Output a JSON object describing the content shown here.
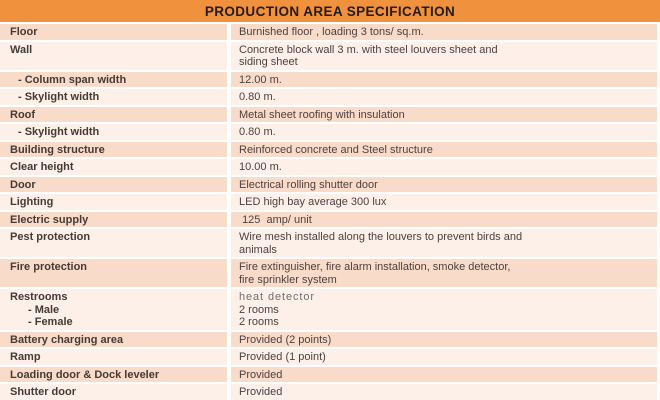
{
  "title": "PRODUCTION AREA SPECIFICATION",
  "colors": {
    "header_bg": "#F0913E",
    "header_text": "#241B14",
    "row_dark": "#F9DBC9",
    "row_light": "#FCF0E9",
    "text": "#4C4141",
    "muted_text": "#6F6F6F"
  },
  "table": {
    "rows": [
      {
        "label": "Floor",
        "value": "Burnished floor , loading 3 tons/ sq.m."
      },
      {
        "label": "Wall",
        "value_lines": [
          {
            "text": "Concrete block wall 3 m. with steel louvers sheet and"
          },
          {
            "text": "siding sheet"
          }
        ]
      },
      {
        "label": "- Column span width",
        "indent": true,
        "value": "12.00 m."
      },
      {
        "label": "- Skylight width",
        "indent": true,
        "value": "0.80 m."
      },
      {
        "label": "Roof",
        "value": "Metal sheet roofing with insulation"
      },
      {
        "label": "- Skylight width",
        "indent": true,
        "value": "0.80 m."
      },
      {
        "label": "Building structure",
        "value": "Reinforced concrete and Steel structure"
      },
      {
        "label": "Clear height",
        "value": "10.00 m."
      },
      {
        "label": "Door",
        "value": "Electrical rolling shutter door"
      },
      {
        "label": "Lighting",
        "value": "LED high bay average 300 lux"
      },
      {
        "label": "Electric supply",
        "value": " 125  amp/ unit"
      },
      {
        "label": "Pest protection",
        "value_lines": [
          {
            "text": "Wire mesh installed along the louvers to prevent birds and"
          },
          {
            "text": "animals"
          }
        ]
      },
      {
        "label": "Fire protection",
        "value_lines": [
          {
            "text": "Fire extinguisher, fire alarm installation, smoke detector,"
          },
          {
            "text": "fire sprinkler system"
          }
        ]
      },
      {
        "label_lines": [
          {
            "text": "Restrooms"
          },
          {
            "text": "- Male",
            "indent": true
          },
          {
            "text": "- Female",
            "indent": true
          }
        ],
        "value_lines": [
          {
            "text": "heat detector",
            "muted": true
          },
          {
            "text": "2 rooms"
          },
          {
            "text": "2 rooms"
          }
        ]
      },
      {
        "label": "Battery charging area",
        "value": "Provided (2 points)"
      },
      {
        "label": "Ramp",
        "value": "Provided (1 point)"
      },
      {
        "label": "Loading door & Dock leveler",
        "value": "Provided"
      },
      {
        "label": "Shutter door",
        "value": "Provided"
      }
    ]
  }
}
